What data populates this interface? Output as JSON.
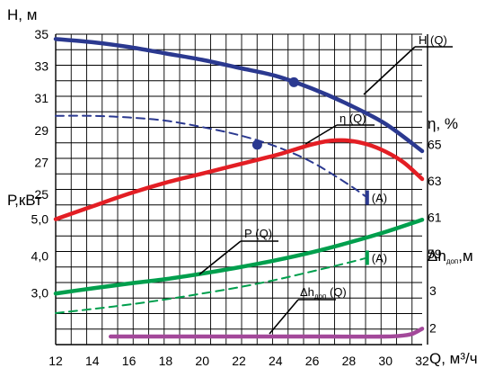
{
  "chart_data": {
    "type": "line",
    "x_label": "Q, м³/ч",
    "x_ticks": [
      12,
      14,
      16,
      18,
      20,
      22,
      24,
      26,
      28,
      30,
      32
    ],
    "axes": {
      "H": {
        "label": "Н, м",
        "ticks": [
          25,
          27,
          29,
          31,
          33,
          35
        ]
      },
      "P": {
        "label": "Р,кВт",
        "ticks": [
          "3,0",
          "4,0",
          "5,0"
        ]
      },
      "eta": {
        "label": "η, %",
        "ticks": [
          59,
          61,
          63,
          65
        ]
      },
      "dh": {
        "label": "Δh",
        "label_sub": "доп",
        "label_unit": ",м",
        "ticks": [
          2,
          3
        ]
      }
    },
    "series": [
      {
        "name": "Н (Q)",
        "axis": "H",
        "color": "#2b3990",
        "style": "solid",
        "x": [
          12,
          14,
          16,
          18,
          20,
          22,
          24,
          26,
          28,
          30,
          32
        ],
        "y": [
          34.7,
          34.5,
          34.2,
          33.8,
          33.4,
          32.9,
          32.4,
          31.6,
          30.6,
          29.4,
          27.7
        ]
      },
      {
        "name": "Н (Q) (A)",
        "axis": "H",
        "color": "#2b3990",
        "style": "dashed",
        "x": [
          12,
          14,
          16,
          18,
          20,
          22,
          24,
          26,
          28,
          29
        ],
        "y": [
          29.9,
          29.9,
          29.8,
          29.6,
          29.2,
          28.7,
          28.0,
          27.0,
          25.6,
          24.8
        ]
      },
      {
        "name": "η (Q)",
        "axis": "eta",
        "color": "#e31e24",
        "style": "solid",
        "x": [
          12,
          14,
          16,
          18,
          20,
          22,
          24,
          25,
          26,
          27,
          28,
          29,
          30,
          31,
          32
        ],
        "y": [
          60.9,
          61.6,
          62.3,
          62.9,
          63.4,
          63.9,
          64.4,
          64.7,
          65.0,
          65.2,
          65.2,
          65.0,
          64.6,
          64.0,
          63.1
        ]
      },
      {
        "name": "Р (Q)",
        "axis": "P",
        "color": "#009f4d",
        "style": "solid",
        "x": [
          12,
          14,
          16,
          18,
          20,
          22,
          24,
          26,
          28,
          30,
          32
        ],
        "y": [
          2.98,
          3.12,
          3.25,
          3.37,
          3.52,
          3.69,
          3.88,
          4.1,
          4.36,
          4.65,
          4.98
        ]
      },
      {
        "name": "Р (Q) (A)",
        "axis": "P",
        "color": "#009f4d",
        "style": "dashed",
        "x": [
          12,
          14,
          16,
          18,
          20,
          22,
          24,
          26,
          28,
          29
        ],
        "y": [
          2.45,
          2.56,
          2.68,
          2.82,
          2.98,
          3.15,
          3.35,
          3.58,
          3.82,
          3.95
        ]
      },
      {
        "name": "Δh доп (Q)",
        "axis": "dh",
        "color": "#a3489a",
        "style": "solid",
        "x": [
          15,
          18,
          21,
          24,
          27,
          30,
          31,
          31.5,
          32
        ],
        "y": [
          1.77,
          1.77,
          1.77,
          1.77,
          1.77,
          1.77,
          1.8,
          1.85,
          1.98
        ]
      }
    ],
    "markers": [
      {
        "series": "Н (Q)",
        "x": 25,
        "y": 32.0
      },
      {
        "series": "Н (Q) (A)",
        "x": 23,
        "y": 28.1
      }
    ],
    "annotations": [
      {
        "text": "Н (Q)",
        "axis": "H",
        "for": "Н (Q)"
      },
      {
        "text": "η (Q)",
        "axis": "eta",
        "for": "η (Q)"
      },
      {
        "text": "Р (Q)",
        "axis": "P",
        "for": "Р (Q)"
      },
      {
        "text": "Δh",
        "sub": "доп",
        "suffix": " (Q)",
        "axis": "dh",
        "for": "Δh доп (Q)"
      },
      {
        "text": "(A)",
        "axis": "H",
        "color": "#2b3990",
        "x": 29,
        "y": 24.8
      },
      {
        "text": "(A)",
        "axis": "P",
        "color": "#009f4d",
        "x": 29,
        "y": 3.95
      }
    ],
    "grid": true
  }
}
